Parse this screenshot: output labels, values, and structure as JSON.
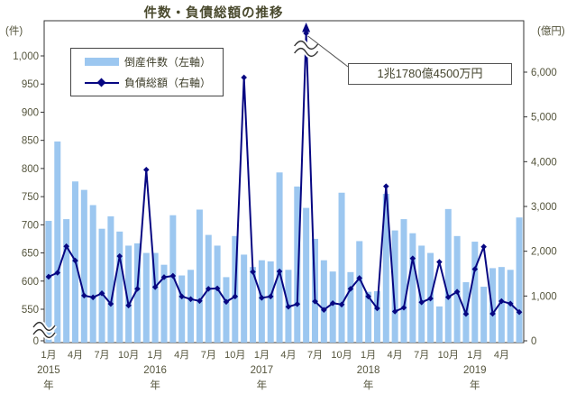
{
  "title": "件数・負債総額の推移",
  "axes": {
    "left": {
      "unit": "(件)",
      "tick_labels": [
        "1,000",
        "950",
        "900",
        "850",
        "800",
        "750",
        "700",
        "650",
        "600",
        "550",
        "0"
      ],
      "tick_values": [
        1000,
        950,
        900,
        850,
        800,
        750,
        700,
        650,
        600,
        550,
        0
      ],
      "has_break": true
    },
    "right": {
      "unit": "(億円)",
      "tick_labels": [
        "6,000",
        "5,000",
        "4,000",
        "3,000",
        "2,000",
        "1,000",
        "0"
      ],
      "tick_values": [
        6000,
        5000,
        4000,
        3000,
        2000,
        1000,
        0
      ]
    },
    "x": {
      "month_tick_labels": [
        "1月",
        "4月",
        "7月",
        "10月",
        "1月",
        "4月",
        "7月",
        "10月",
        "1月",
        "4月",
        "7月",
        "10月",
        "1月",
        "4月",
        "7月",
        "10月",
        "1月",
        "4月"
      ],
      "month_tick_positions": [
        0,
        3,
        6,
        9,
        12,
        15,
        18,
        21,
        24,
        27,
        30,
        33,
        36,
        39,
        42,
        45,
        48,
        51
      ],
      "year_labels": [
        "2015",
        "2016",
        "2017",
        "2018",
        "2019"
      ],
      "year_positions": [
        0,
        12,
        24,
        36,
        48
      ],
      "year_suffix": "年"
    }
  },
  "legend": {
    "bars": "倒産件数（左軸）",
    "line": "負債総額（右軸）"
  },
  "annotation": {
    "text": "1兆1780億4500万円",
    "points_to": "2017-06"
  },
  "colors": {
    "bar": "#9cc7f0",
    "line": "#070782",
    "text": "#55553d",
    "axis": "#333333"
  },
  "chart_data": {
    "type": "combo-bar-line",
    "title": "件数・負債総額の推移",
    "categories": [
      "2015-01",
      "2015-02",
      "2015-03",
      "2015-04",
      "2015-05",
      "2015-06",
      "2015-07",
      "2015-08",
      "2015-09",
      "2015-10",
      "2015-11",
      "2015-12",
      "2016-01",
      "2016-02",
      "2016-03",
      "2016-04",
      "2016-05",
      "2016-06",
      "2016-07",
      "2016-08",
      "2016-09",
      "2016-10",
      "2016-11",
      "2016-12",
      "2017-01",
      "2017-02",
      "2017-03",
      "2017-04",
      "2017-05",
      "2017-06",
      "2017-07",
      "2017-08",
      "2017-09",
      "2017-10",
      "2017-11",
      "2017-12",
      "2018-01",
      "2018-02",
      "2018-03",
      "2018-04",
      "2018-05",
      "2018-06",
      "2018-07",
      "2018-08",
      "2018-09",
      "2018-10",
      "2018-11",
      "2018-12",
      "2019-01",
      "2019-02",
      "2019-03",
      "2019-04",
      "2019-05",
      "2019-06"
    ],
    "series": [
      {
        "name": "倒産件数（左軸）",
        "type": "bar",
        "axis": "left",
        "unit": "件",
        "values": [
          707,
          848,
          710,
          777,
          762,
          735,
          693,
          715,
          688,
          663,
          667,
          650,
          650,
          629,
          717,
          610,
          620,
          727,
          682,
          663,
          607,
          680,
          647,
          625,
          637,
          635,
          793,
          620,
          768,
          730,
          675,
          637,
          617,
          757,
          616,
          671,
          581,
          582,
          755,
          690,
          710,
          685,
          663,
          650,
          555,
          728,
          680,
          598,
          670,
          590,
          623,
          625,
          620,
          713
        ]
      },
      {
        "name": "負債総額（右軸）",
        "type": "line",
        "axis": "right",
        "unit": "億円",
        "values": [
          1430,
          1520,
          2110,
          1790,
          1010,
          970,
          1060,
          825,
          1890,
          790,
          1160,
          3820,
          1200,
          1420,
          1450,
          990,
          930,
          890,
          1160,
          1170,
          870,
          990,
          5880,
          1540,
          960,
          990,
          1550,
          760,
          820,
          11780.45,
          880,
          690,
          840,
          810,
          1160,
          1400,
          990,
          725,
          3450,
          655,
          740,
          1840,
          860,
          945,
          1760,
          975,
          1095,
          600,
          1600,
          2100,
          605,
          885,
          830,
          640
        ]
      }
    ],
    "left_ylim": [
      550,
      1000
    ],
    "left_axis_break": true,
    "right_ylim": [
      0,
      6000
    ],
    "off_scale_point": {
      "category": "2017-06",
      "value_oku": 11780.45,
      "label": "1兆1780億4500万円"
    },
    "legend_position": "top-left-inside",
    "grid": false
  }
}
